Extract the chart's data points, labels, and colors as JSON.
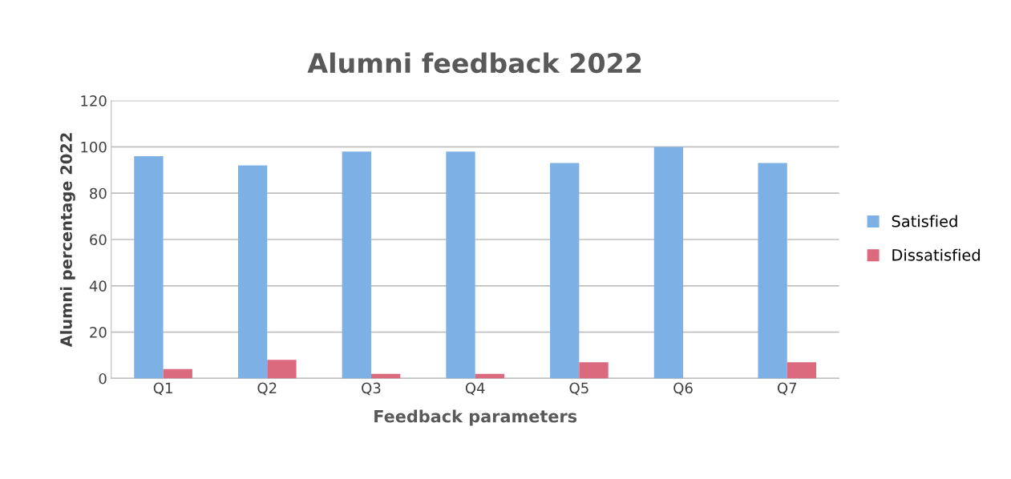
{
  "chart_data": {
    "type": "bar",
    "title": "Alumni feedback 2022",
    "xlabel": "Feedback parameters",
    "ylabel": "Alumni percentage 2022",
    "categories": [
      "Q1",
      "Q2",
      "Q3",
      "Q4",
      "Q5",
      "Q6",
      "Q7"
    ],
    "series": [
      {
        "name": "Satisfied",
        "color": "#7db1e6",
        "values": [
          96,
          92,
          98,
          98,
          93,
          100,
          93
        ]
      },
      {
        "name": "Dissatisfied",
        "color": "#dc6a7e",
        "values": [
          4,
          8,
          2,
          2,
          7,
          0,
          7
        ]
      }
    ],
    "ylim": [
      0,
      120
    ],
    "yticks": [
      0,
      20,
      40,
      60,
      80,
      100,
      120
    ],
    "grid": "y",
    "legend": "right"
  }
}
